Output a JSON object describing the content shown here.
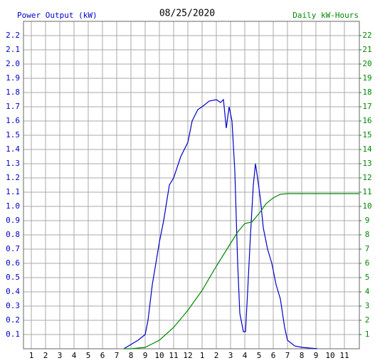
{
  "chart_data": {
    "type": "line",
    "title": "08/25/2020",
    "y_label": "Power Output (kW)",
    "y2_label": "Daily kW-Hours",
    "xlim": [
      0.45,
      24.05
    ],
    "xticks": [
      {
        "value": 1,
        "label": "1"
      },
      {
        "value": 2,
        "label": "2"
      },
      {
        "value": 3,
        "label": "3"
      },
      {
        "value": 4,
        "label": "4"
      },
      {
        "value": 5,
        "label": "5"
      },
      {
        "value": 6,
        "label": "6"
      },
      {
        "value": 7,
        "label": "7"
      },
      {
        "value": 8,
        "label": "8"
      },
      {
        "value": 9,
        "label": "9"
      },
      {
        "value": 10,
        "label": "10"
      },
      {
        "value": 11,
        "label": "11"
      },
      {
        "value": 12,
        "label": "12"
      },
      {
        "value": 13,
        "label": "1"
      },
      {
        "value": 14,
        "label": "2"
      },
      {
        "value": 15,
        "label": "3"
      },
      {
        "value": 16,
        "label": "4"
      },
      {
        "value": 17,
        "label": "5"
      },
      {
        "value": 18,
        "label": "6"
      },
      {
        "value": 19,
        "label": "7"
      },
      {
        "value": 20,
        "label": "8"
      },
      {
        "value": 21,
        "label": "9"
      },
      {
        "value": 22,
        "label": "10"
      },
      {
        "value": 23,
        "label": "11"
      }
    ],
    "ylim": [
      0,
      2.3
    ],
    "yticks": [
      0.1,
      0.2,
      0.3,
      0.4,
      0.5,
      0.6,
      0.7,
      0.8,
      0.9,
      {
        "value": 1,
        "label": "1.0"
      },
      1.1,
      1.2,
      1.3,
      1.4,
      1.5,
      1.6,
      1.7,
      1.8,
      1.9,
      {
        "value": 2,
        "label": "2.0"
      },
      2.1,
      2.2
    ],
    "y2lim": [
      0,
      23
    ],
    "y2ticks": [
      1,
      2,
      3,
      4,
      5,
      6,
      7,
      8,
      9,
      10,
      11,
      12,
      13,
      14,
      15,
      16,
      17,
      18,
      19,
      20,
      21,
      22
    ],
    "grid": true,
    "series": [
      {
        "name": "Power Output (kW)",
        "color": "#0000c8",
        "x": [
          7.5,
          8,
          8.5,
          9,
          9.2,
          9.5,
          10,
          10.3,
          10.7,
          11,
          11.5,
          12,
          12.3,
          12.7,
          13,
          13.5,
          14,
          14.3,
          14.5,
          14.7,
          14.9,
          15.1,
          15.3,
          15.5,
          15.65,
          15.9,
          16.05,
          16.2,
          16.4,
          16.6,
          16.75,
          16.9,
          17.1,
          17.3,
          17.6,
          17.9,
          18.2,
          18.5,
          18.8,
          19,
          19.5,
          20,
          21.1
        ],
        "values": [
          0,
          0.03,
          0.06,
          0.1,
          0.2,
          0.45,
          0.75,
          0.9,
          1.15,
          1.2,
          1.35,
          1.45,
          1.6,
          1.68,
          1.7,
          1.74,
          1.75,
          1.73,
          1.75,
          1.55,
          1.7,
          1.6,
          1.25,
          0.6,
          0.25,
          0.12,
          0.12,
          0.4,
          0.8,
          1.15,
          1.3,
          1.2,
          1.05,
          0.85,
          0.7,
          0.6,
          0.45,
          0.35,
          0.15,
          0.06,
          0.02,
          0.01,
          0
        ]
      },
      {
        "name": "Daily kW-Hours",
        "color": "#008800",
        "axis": "y2",
        "x": [
          7.5,
          8,
          9,
          10,
          11,
          12,
          13,
          14,
          14.5,
          15,
          15.5,
          16,
          16.5,
          17,
          17.5,
          18,
          18.5,
          19,
          24.05
        ],
        "values": [
          0,
          0,
          0.1,
          0.6,
          1.5,
          2.7,
          4.1,
          5.8,
          6.6,
          7.4,
          8.2,
          8.8,
          8.9,
          9.5,
          10.2,
          10.6,
          10.85,
          10.9,
          10.9
        ]
      }
    ]
  }
}
